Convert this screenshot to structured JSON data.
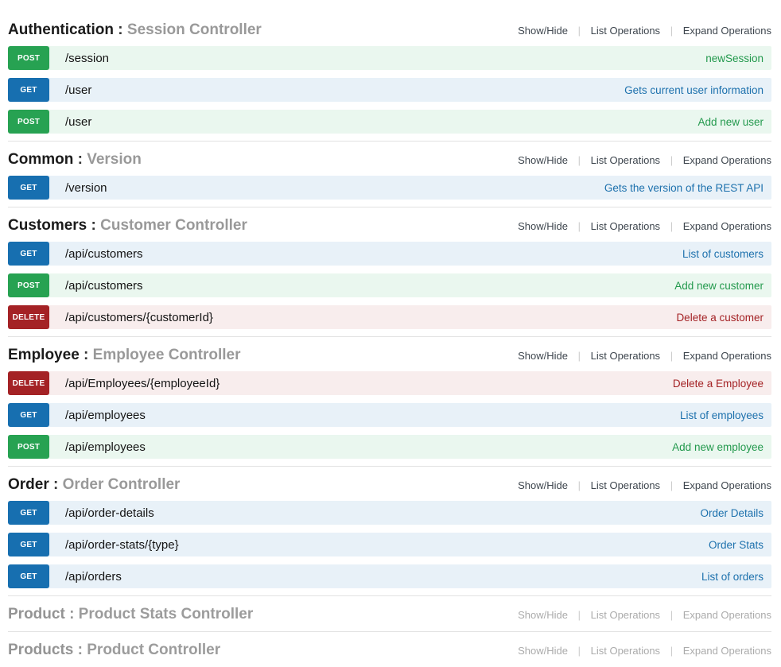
{
  "colors": {
    "get": "#176fb0",
    "get_bg": "#e8f1f8",
    "get_link": "#1d71ad",
    "post": "#27a252",
    "post_bg": "#eaf7ef",
    "post_link": "#23994d",
    "delete": "#a42225",
    "delete_bg": "#f8eded",
    "delete_link": "#a42225"
  },
  "controls": {
    "show_hide": "Show/Hide",
    "list_operations": "List Operations",
    "expand_operations": "Expand Operations"
  },
  "heading_separator": ":",
  "sections": [
    {
      "name": "Authentication",
      "controller": "Session Controller",
      "collapsed": false,
      "endpoints": [
        {
          "method": "POST",
          "path": "/session",
          "description": "newSession"
        },
        {
          "method": "GET",
          "path": "/user",
          "description": "Gets current user information"
        },
        {
          "method": "POST",
          "path": "/user",
          "description": "Add new user"
        }
      ]
    },
    {
      "name": "Common",
      "controller": "Version",
      "collapsed": false,
      "endpoints": [
        {
          "method": "GET",
          "path": "/version",
          "description": "Gets the version of the REST API"
        }
      ]
    },
    {
      "name": "Customers",
      "controller": "Customer Controller",
      "collapsed": false,
      "endpoints": [
        {
          "method": "GET",
          "path": "/api/customers",
          "description": "List of customers"
        },
        {
          "method": "POST",
          "path": "/api/customers",
          "description": "Add new customer"
        },
        {
          "method": "DELETE",
          "path": "/api/customers/{customerId}",
          "description": "Delete a customer"
        }
      ]
    },
    {
      "name": "Employee",
      "controller": "Employee Controller",
      "collapsed": false,
      "endpoints": [
        {
          "method": "DELETE",
          "path": "/api/Employees/{employeeId}",
          "description": "Delete a Employee"
        },
        {
          "method": "GET",
          "path": "/api/employees",
          "description": "List of employees"
        },
        {
          "method": "POST",
          "path": "/api/employees",
          "description": "Add new employee"
        }
      ]
    },
    {
      "name": "Order",
      "controller": "Order Controller",
      "collapsed": false,
      "endpoints": [
        {
          "method": "GET",
          "path": "/api/order-details",
          "description": "Order Details"
        },
        {
          "method": "GET",
          "path": "/api/order-stats/{type}",
          "description": "Order Stats"
        },
        {
          "method": "GET",
          "path": "/api/orders",
          "description": "List of orders"
        }
      ]
    },
    {
      "name": "Product",
      "controller": "Product Stats Controller",
      "collapsed": true,
      "endpoints": []
    },
    {
      "name": "Products",
      "controller": "Product Controller",
      "collapsed": true,
      "endpoints": []
    }
  ]
}
